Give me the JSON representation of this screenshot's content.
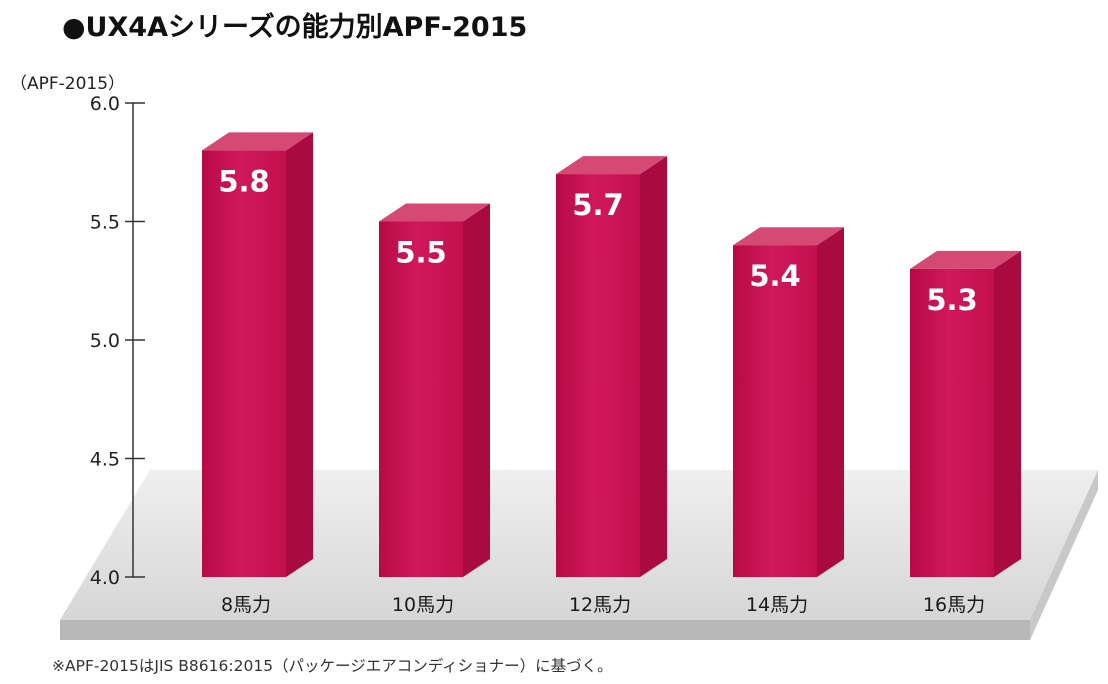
{
  "header": {
    "title": "●UX4Aシリーズの能力別APF-2015"
  },
  "footer": {
    "note": "※APF-2015はJIS B8616:2015（パッケージエアコンディショナー）に基づく。"
  },
  "colors": {
    "bar_front": "#c8104f",
    "bar_side": "#a90a40",
    "bar_top": "#d44a74",
    "floor": "#dcdcdc",
    "floor_edge": "#b8b8b8",
    "axis": "#333333",
    "note_mark": "#c8104f"
  },
  "chart_data": {
    "type": "bar",
    "unit_label": "（APF-2015）",
    "categories": [
      "8馬力",
      "10馬力",
      "12馬力",
      "14馬力",
      "16馬力"
    ],
    "values": [
      5.8,
      5.5,
      5.7,
      5.4,
      5.3
    ],
    "value_labels": [
      "5.8",
      "5.5",
      "5.7",
      "5.4",
      "5.3"
    ],
    "ylim": [
      4.0,
      6.0
    ],
    "yticks": [
      "4.0",
      "4.5",
      "5.0",
      "5.5",
      "6.0"
    ],
    "grid": false,
    "style": "3d"
  }
}
